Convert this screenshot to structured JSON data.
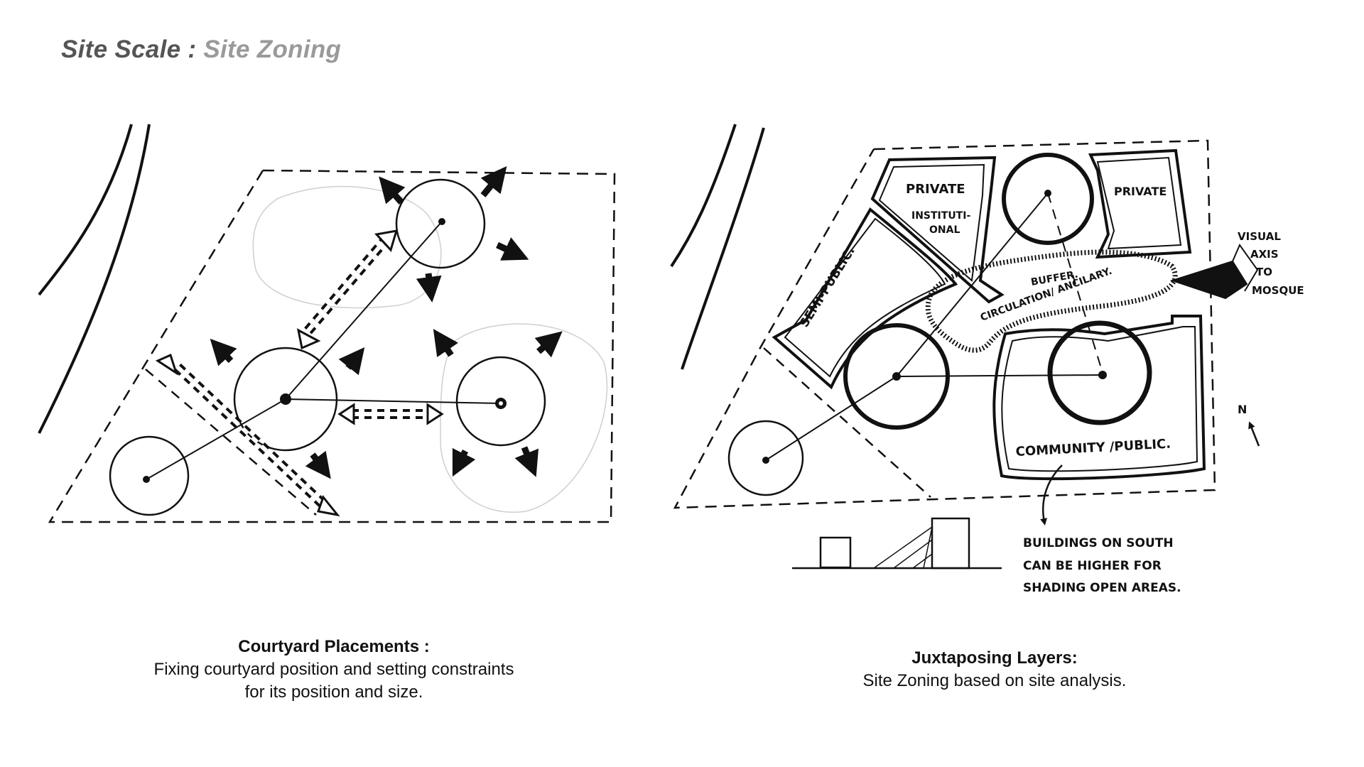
{
  "page": {
    "title_main": "Site Scale : ",
    "title_sub": "Site Zoning"
  },
  "left_diagram": {
    "caption_title": "Courtyard Placements :",
    "caption_line1": "Fixing courtyard position and setting constraints",
    "caption_line2": "for its position and size."
  },
  "right_diagram": {
    "caption_title": "Juxtaposing Layers:",
    "caption_line1": "Site Zoning based on site analysis.",
    "labels": {
      "private_1": "PRIVATE",
      "institutional_1": "INSTITUTI-",
      "institutional_2": "ONAL",
      "private_2": "PRIVATE",
      "semi_public": "SEMI-PUBLIC.",
      "buffer": "BUFFER.",
      "circulation": "CIRCULATION/ ANCILARY.",
      "community": "COMMUNITY /PUBLIC.",
      "visual_1": "VISUAL",
      "visual_2": "AXIS",
      "visual_3": "TO",
      "visual_4": "MOSQUE",
      "north": "N",
      "note_1": "BUILDINGS ON SOUTH",
      "note_2": "CAN BE HIGHER FOR",
      "note_3": "SHADING OPEN AREAS."
    }
  },
  "colors": {
    "ink": "#111111",
    "title_main": "#555555",
    "title_sub": "#9a9a9a"
  }
}
